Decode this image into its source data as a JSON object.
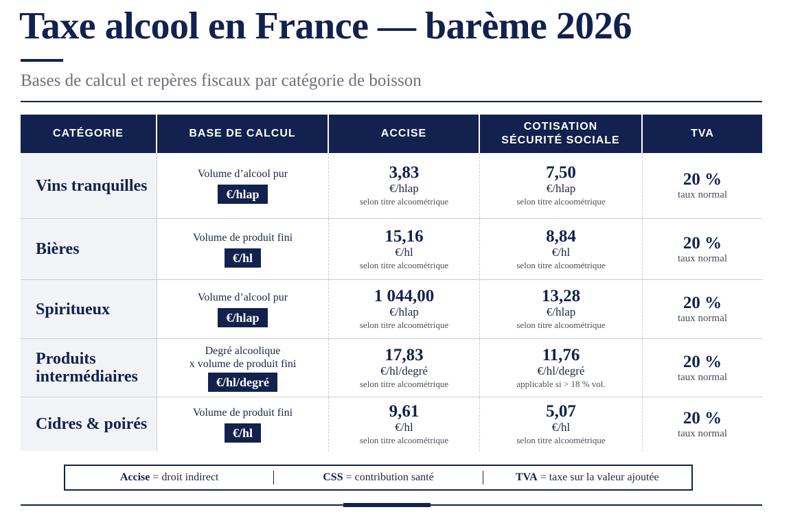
{
  "title": "Taxe alcool en France — barème 2026",
  "subtitle": "Bases de calcul et repères fiscaux par catégorie de boisson",
  "colors": {
    "navy": "#12214d",
    "category_bg": "#f1f3f6",
    "muted": "#6b6f78"
  },
  "headers": {
    "categorie": "CATÉGORIE",
    "base": "BASE DE CALCUL",
    "accise": "ACCISE",
    "css_line1": "COTISATION",
    "css_line2": "SÉCURITÉ SOCIALE",
    "tva": "TVA"
  },
  "rows": [
    {
      "category": "Vins tranquilles",
      "base_text": "Volume d’alcool pur",
      "base_unit": "€/hlap",
      "accise_value": "3,83",
      "accise_unit": "€/hlap",
      "accise_note": "selon titre alcoométrique",
      "css_value": "7,50",
      "css_unit": "€/hlap",
      "css_note": "selon titre alcoométrique",
      "tva_value": "20 %",
      "tva_note": "taux normal"
    },
    {
      "category": "Bières",
      "base_text": "Volume de produit fini",
      "base_unit": "€/hl",
      "accise_value": "15,16",
      "accise_unit": "€/hl",
      "accise_note": "selon titre alcoométrique",
      "css_value": "8,84",
      "css_unit": "€/hl",
      "css_note": "selon titre alcoométrique",
      "tva_value": "20 %",
      "tva_note": "taux normal"
    },
    {
      "category": "Spiritueux",
      "base_text": "Volume d’alcool pur",
      "base_unit": "€/hlap",
      "accise_value": "1 044,00",
      "accise_unit": "€/hlap",
      "accise_note": "selon titre alcoométrique",
      "css_value": "13,28",
      "css_unit": "€/hlap",
      "css_note": "selon titre alcoométrique",
      "tva_value": "20 %",
      "tva_note": "taux normal"
    },
    {
      "category_line1": "Produits",
      "category_line2": "intermédiaires",
      "base_text_line1": "Degré alcoolique",
      "base_text_line2": "x volume de produit fini",
      "base_unit": "€/hl/degré",
      "accise_value": "17,83",
      "accise_unit": "€/hl/degré",
      "accise_note": "selon titre alcoométrique",
      "css_value": "11,76",
      "css_unit": "€/hl/degré",
      "css_note": "applicable si > 18 % vol.",
      "tva_value": "20 %",
      "tva_note": "taux normal"
    },
    {
      "category": "Cidres & poirés",
      "base_text": "Volume de produit fini",
      "base_unit": "€/hl",
      "accise_value": "9,61",
      "accise_unit": "€/hl",
      "accise_note": "selon titre alcoométrique",
      "css_value": "5,07",
      "css_unit": "€/hl",
      "css_note": "selon titre alcoométrique",
      "tva_value": "20 %",
      "tva_note": "taux normal"
    }
  ],
  "legend": [
    {
      "term": "Accise",
      "definition": "= droit indirect"
    },
    {
      "term": "CSS",
      "definition": "= contribution santé"
    },
    {
      "term": "TVA",
      "definition": "= taxe sur la valeur ajoutée"
    }
  ]
}
